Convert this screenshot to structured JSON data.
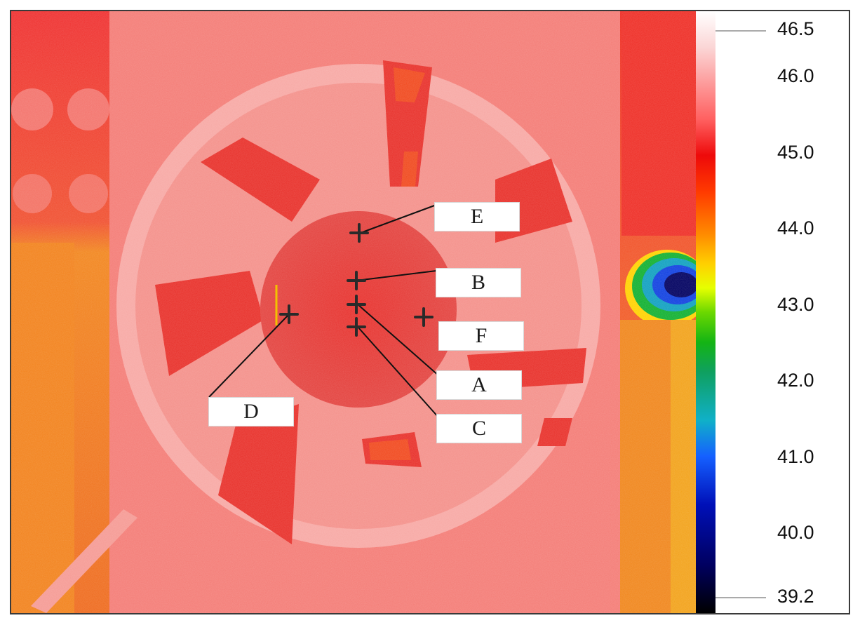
{
  "thermal_image": {
    "description_icon": "fan-thermal-icon",
    "labels": [
      {
        "id": "E",
        "text": "E"
      },
      {
        "id": "B",
        "text": "B"
      },
      {
        "id": "F",
        "text": "F"
      },
      {
        "id": "A",
        "text": "A"
      },
      {
        "id": "C",
        "text": "C"
      },
      {
        "id": "D",
        "text": "D"
      }
    ]
  },
  "scale": {
    "max_label": "46.5",
    "min_label": "39.2",
    "ticks": [
      "46.0",
      "45.0",
      "44.0",
      "43.0",
      "42.0",
      "41.0",
      "40.0"
    ]
  },
  "colors": {
    "hot_white": "#ffe0e0",
    "hot_red": "#ef2a26",
    "warm_orange": "#f47a1c",
    "cold_blue": "#001a9a"
  }
}
